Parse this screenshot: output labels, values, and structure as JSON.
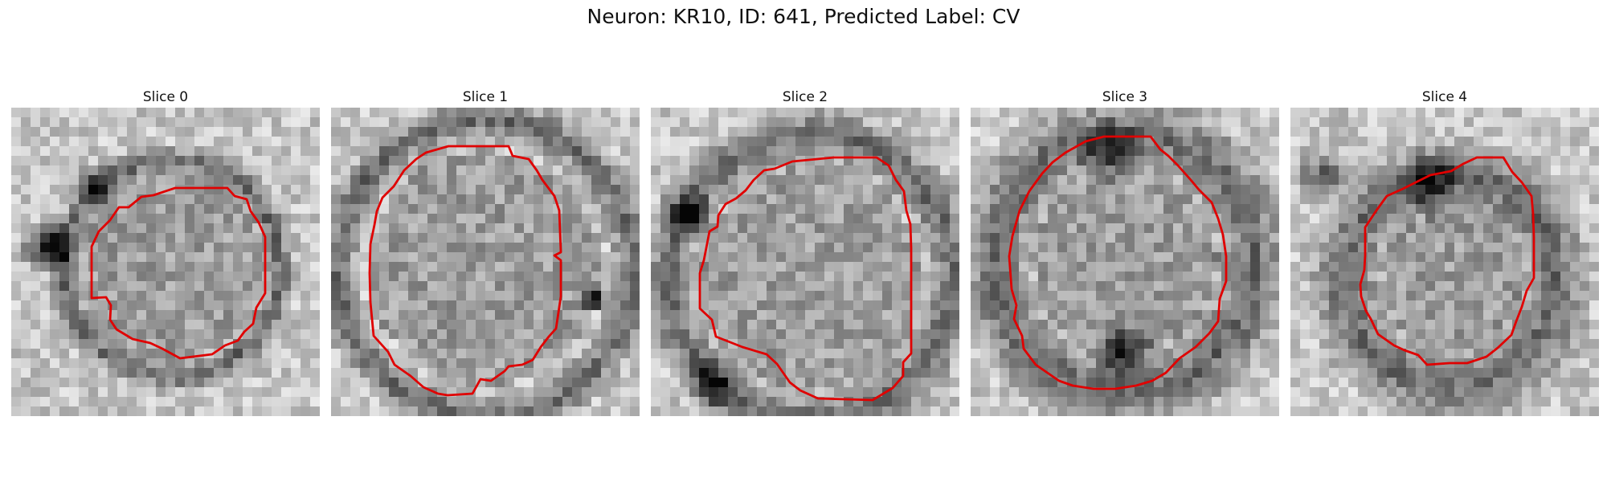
{
  "figure": {
    "title": "Neuron: KR10, ID: 641, Predicted Label: CV",
    "contour_color": "#e00000"
  },
  "panels": [
    {
      "title": "Slice 0"
    },
    {
      "title": "Slice 1"
    },
    {
      "title": "Slice 2"
    },
    {
      "title": "Slice 3"
    },
    {
      "title": "Slice 4"
    }
  ]
}
